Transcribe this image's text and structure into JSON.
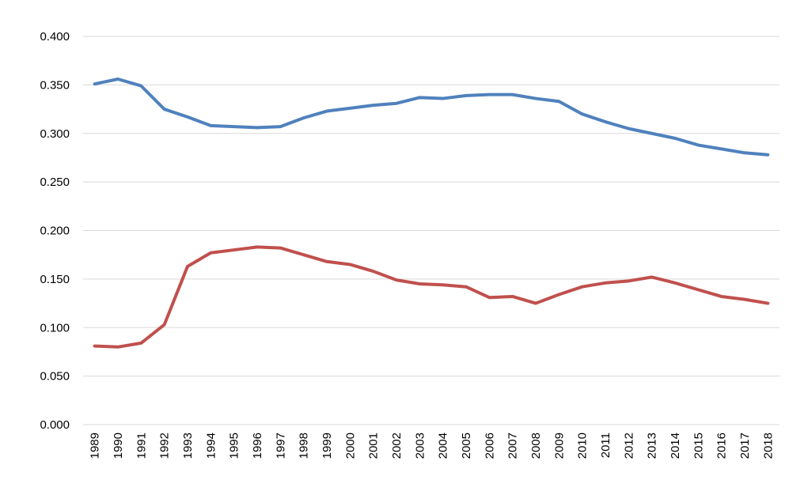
{
  "chart_data": {
    "type": "line",
    "title": "",
    "xlabel": "",
    "ylabel": "",
    "ylim": [
      0,
      0.4
    ],
    "y_step": 0.05,
    "y_tick_decimals": 3,
    "grid": true,
    "legend": "none",
    "x": [
      "1989",
      "1990",
      "1991",
      "1992",
      "1993",
      "1994",
      "1995",
      "1996",
      "1997",
      "1998",
      "1999",
      "2000",
      "2001",
      "2002",
      "2003",
      "2004",
      "2005",
      "2006",
      "2007",
      "2008",
      "2009",
      "2010",
      "2011",
      "2012",
      "2013",
      "2014",
      "2015",
      "2016",
      "2017",
      "2018"
    ],
    "series": [
      {
        "color": "#4f81bd",
        "values": [
          0.351,
          0.356,
          0.349,
          0.325,
          0.317,
          0.308,
          0.307,
          0.306,
          0.307,
          0.316,
          0.323,
          0.326,
          0.329,
          0.331,
          0.337,
          0.336,
          0.339,
          0.34,
          0.34,
          0.336,
          0.333,
          0.32,
          0.312,
          0.305,
          0.3,
          0.295,
          0.288,
          0.284,
          0.28,
          0.278
        ]
      },
      {
        "color": "#c0504d",
        "values": [
          0.081,
          0.08,
          0.084,
          0.103,
          0.163,
          0.177,
          0.18,
          0.183,
          0.182,
          0.175,
          0.168,
          0.165,
          0.158,
          0.149,
          0.145,
          0.144,
          0.142,
          0.131,
          0.132,
          0.125,
          0.134,
          0.142,
          0.146,
          0.148,
          0.152,
          0.146,
          0.139,
          0.132,
          0.129,
          0.125
        ]
      }
    ]
  }
}
